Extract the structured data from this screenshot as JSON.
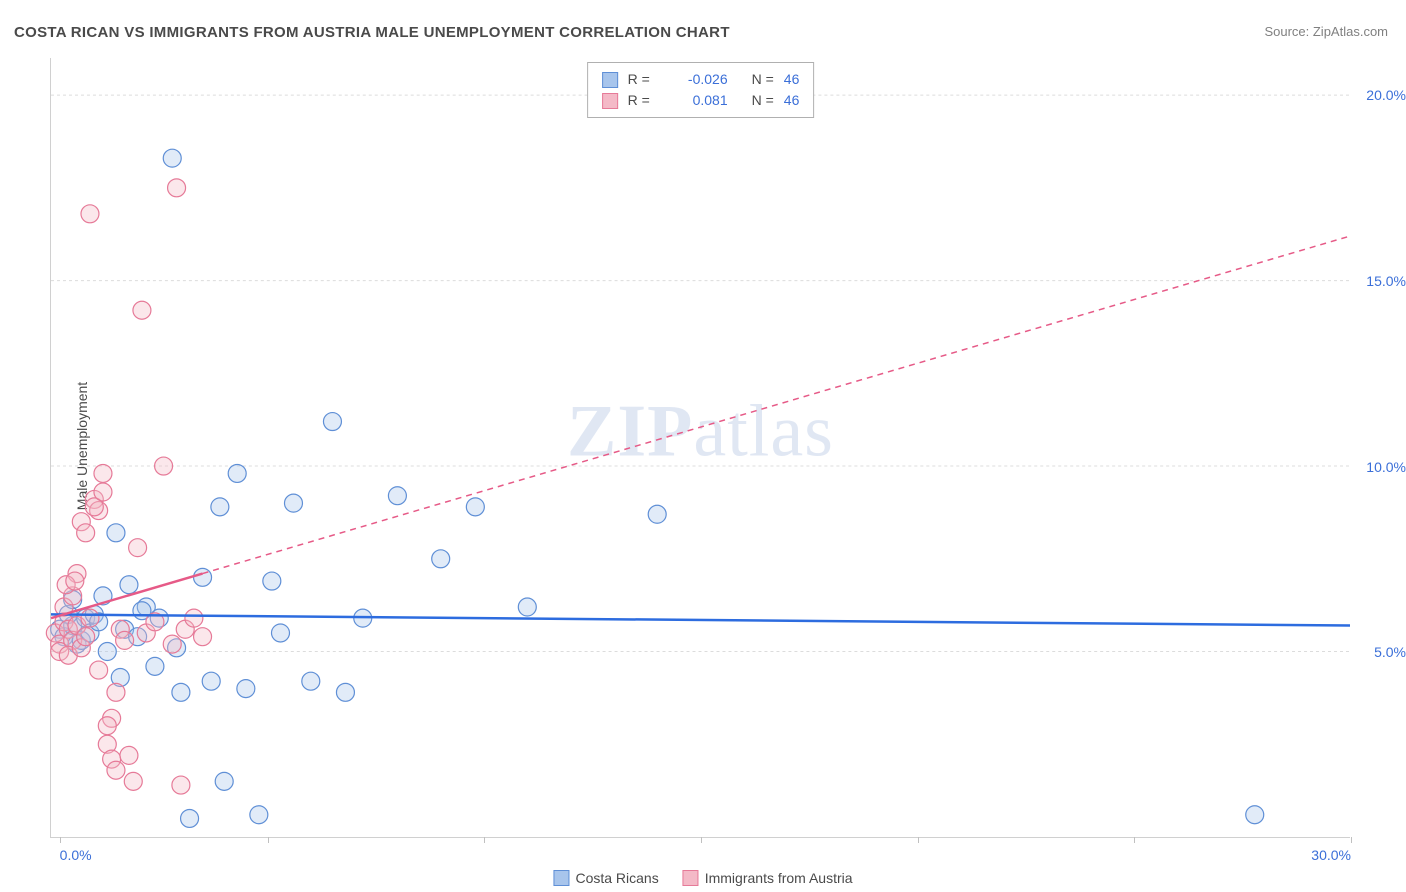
{
  "title": "COSTA RICAN VS IMMIGRANTS FROM AUSTRIA MALE UNEMPLOYMENT CORRELATION CHART",
  "source": "Source: ZipAtlas.com",
  "ylabel": "Male Unemployment",
  "watermark_a": "ZIP",
  "watermark_b": "atlas",
  "chart": {
    "type": "scatter",
    "xlim": [
      0,
      30
    ],
    "ylim": [
      0,
      21
    ],
    "background_color": "#ffffff",
    "grid_color": "#dcdcdc",
    "marker_radius": 9,
    "xtick_positions": [
      0.2,
      5,
      10,
      15,
      20,
      25,
      30
    ],
    "xtick_labels": [
      "0.0%",
      "",
      "",
      "",
      "",
      "",
      "30.0%"
    ],
    "ytick_positions": [
      5,
      10,
      15,
      20
    ],
    "ytick_labels": [
      "5.0%",
      "10.0%",
      "15.0%",
      "20.0%"
    ]
  },
  "series": [
    {
      "key": "costa_ricans",
      "label": "Costa Ricans",
      "fill_color": "#a8c5ec",
      "stroke_color": "#5f8fd6",
      "r_value": "-0.026",
      "n_value": "46",
      "trend": {
        "x1": 0,
        "y1": 6.0,
        "x2": 30,
        "y2": 5.7,
        "solid_until_x": 30,
        "color": "#2d6cdf"
      },
      "points": [
        [
          0.2,
          5.6
        ],
        [
          0.3,
          5.4
        ],
        [
          0.5,
          5.7
        ],
        [
          0.4,
          6.0
        ],
        [
          0.6,
          5.2
        ],
        [
          0.8,
          5.9
        ],
        [
          0.5,
          6.4
        ],
        [
          0.7,
          5.3
        ],
        [
          0.9,
          5.5
        ],
        [
          1.0,
          6.0
        ],
        [
          1.2,
          6.5
        ],
        [
          1.3,
          5.0
        ],
        [
          1.5,
          8.2
        ],
        [
          1.7,
          5.6
        ],
        [
          1.8,
          6.8
        ],
        [
          1.6,
          4.3
        ],
        [
          2.0,
          5.4
        ],
        [
          2.2,
          6.2
        ],
        [
          2.4,
          4.6
        ],
        [
          2.5,
          5.9
        ],
        [
          2.8,
          18.3
        ],
        [
          2.9,
          5.1
        ],
        [
          3.0,
          3.9
        ],
        [
          3.2,
          0.5
        ],
        [
          3.5,
          7.0
        ],
        [
          3.7,
          4.2
        ],
        [
          3.9,
          8.9
        ],
        [
          4.0,
          1.5
        ],
        [
          4.3,
          9.8
        ],
        [
          4.5,
          4.0
        ],
        [
          4.8,
          0.6
        ],
        [
          5.1,
          6.9
        ],
        [
          5.3,
          5.5
        ],
        [
          5.6,
          9.0
        ],
        [
          6.0,
          4.2
        ],
        [
          6.5,
          11.2
        ],
        [
          6.8,
          3.9
        ],
        [
          7.2,
          5.9
        ],
        [
          8.0,
          9.2
        ],
        [
          9.0,
          7.5
        ],
        [
          9.8,
          8.9
        ],
        [
          11.0,
          6.2
        ],
        [
          14.0,
          8.7
        ],
        [
          27.8,
          0.6
        ],
        [
          2.1,
          6.1
        ],
        [
          1.1,
          5.8
        ]
      ]
    },
    {
      "key": "immigrants_austria",
      "label": "Immigrants from Austria",
      "fill_color": "#f4b9c7",
      "stroke_color": "#e67a98",
      "r_value": "0.081",
      "n_value": "46",
      "trend": {
        "x1": 0,
        "y1": 5.9,
        "x2": 30,
        "y2": 16.2,
        "solid_until_x": 3.5,
        "color": "#e65a87"
      },
      "points": [
        [
          0.1,
          5.5
        ],
        [
          0.2,
          5.2
        ],
        [
          0.3,
          5.8
        ],
        [
          0.2,
          5.0
        ],
        [
          0.4,
          5.6
        ],
        [
          0.3,
          6.2
        ],
        [
          0.5,
          5.3
        ],
        [
          0.4,
          4.9
        ],
        [
          0.6,
          5.7
        ],
        [
          0.5,
          6.5
        ],
        [
          0.7,
          5.1
        ],
        [
          0.6,
          7.1
        ],
        [
          0.8,
          5.4
        ],
        [
          0.7,
          8.5
        ],
        [
          0.9,
          5.9
        ],
        [
          0.8,
          8.2
        ],
        [
          1.0,
          9.1
        ],
        [
          0.9,
          16.8
        ],
        [
          1.1,
          8.8
        ],
        [
          1.0,
          8.9
        ],
        [
          1.2,
          9.8
        ],
        [
          1.1,
          4.5
        ],
        [
          1.3,
          2.5
        ],
        [
          1.2,
          9.3
        ],
        [
          1.4,
          3.2
        ],
        [
          1.3,
          3.0
        ],
        [
          1.5,
          3.9
        ],
        [
          1.4,
          2.1
        ],
        [
          1.6,
          5.6
        ],
        [
          1.5,
          1.8
        ],
        [
          1.7,
          5.3
        ],
        [
          1.8,
          2.2
        ],
        [
          1.9,
          1.5
        ],
        [
          2.0,
          7.8
        ],
        [
          2.1,
          14.2
        ],
        [
          2.2,
          5.5
        ],
        [
          2.4,
          5.8
        ],
        [
          2.6,
          10.0
        ],
        [
          2.8,
          5.2
        ],
        [
          2.9,
          17.5
        ],
        [
          3.0,
          1.4
        ],
        [
          3.1,
          5.6
        ],
        [
          3.3,
          5.9
        ],
        [
          3.5,
          5.4
        ],
        [
          0.35,
          6.8
        ],
        [
          0.55,
          6.9
        ]
      ]
    }
  ],
  "legend_top": {
    "r_label": "R =",
    "n_label": "N ="
  }
}
